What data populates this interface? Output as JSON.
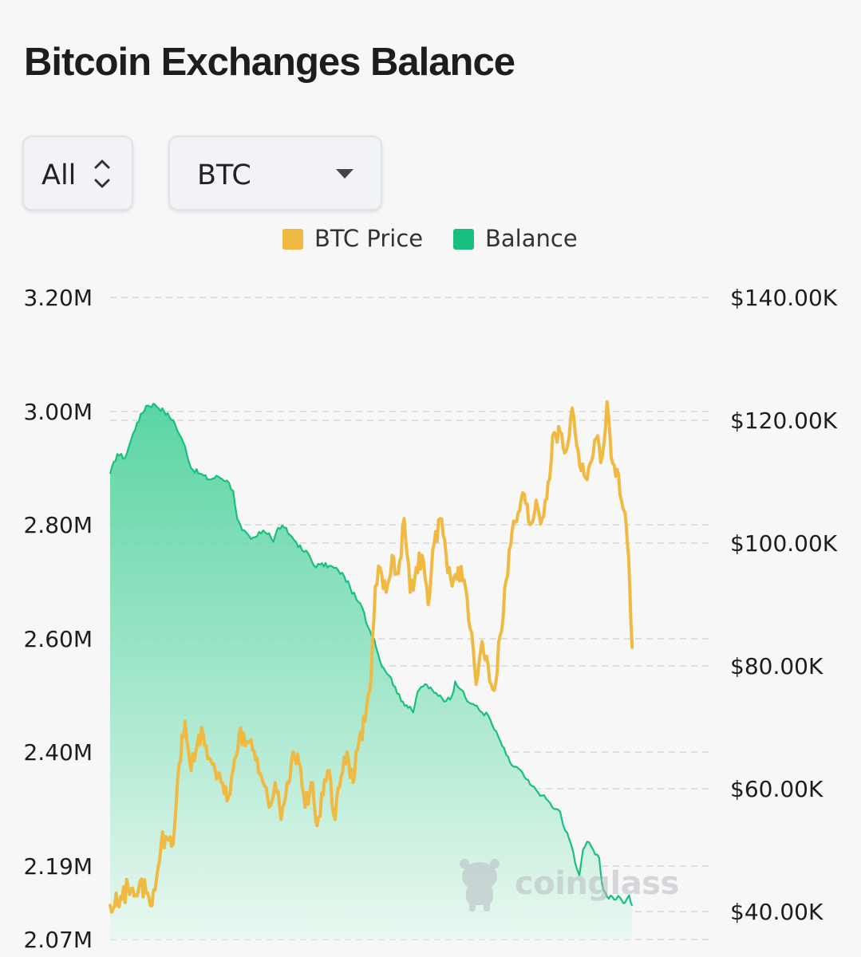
{
  "page": {
    "title": "Bitcoin Exchanges Balance"
  },
  "controls": {
    "range_value": "All",
    "coin_value": "BTC"
  },
  "legend": {
    "price_label": "BTC Price",
    "balance_label": "Balance"
  },
  "watermark": {
    "text": "coinglass"
  },
  "colors": {
    "price": "#f0b941",
    "balance_line": "#19c07d",
    "balance_fill_top": "#3fcf95",
    "balance_fill_bottom": "#e8f8f0",
    "grid": "#dedede"
  },
  "chart_data": {
    "type": "area",
    "title": "Bitcoin Exchanges Balance",
    "x_range": [
      0,
      1
    ],
    "left_axis": {
      "ticks": [
        {
          "label": "3.20M",
          "value": 3200000
        },
        {
          "label": "3.00M",
          "value": 3000000
        },
        {
          "label": "2.80M",
          "value": 2800000
        },
        {
          "label": "2.60M",
          "value": 2600000
        },
        {
          "label": "2.40M",
          "value": 2400000
        },
        {
          "label": "2.19M",
          "value": 2190000
        },
        {
          "label": "2.07M",
          "value": 2070000
        }
      ]
    },
    "right_axis": {
      "ticks": [
        {
          "label": "$140.00K",
          "value": 140000
        },
        {
          "label": "$120.00K",
          "value": 120000
        },
        {
          "label": "$100.00K",
          "value": 100000
        },
        {
          "label": "$80.00K",
          "value": 80000
        },
        {
          "label": "$60.00K",
          "value": 60000
        },
        {
          "label": "$40.00K",
          "value": 40000
        }
      ]
    },
    "grid": true,
    "legend_position": "top-center",
    "series": [
      {
        "name": "Balance",
        "axis": "left",
        "style": "area",
        "points": [
          [
            0.0,
            2890000
          ],
          [
            0.012,
            2925000
          ],
          [
            0.025,
            2918000
          ],
          [
            0.035,
            2950000
          ],
          [
            0.045,
            2980000
          ],
          [
            0.06,
            3010000
          ],
          [
            0.075,
            3012000
          ],
          [
            0.09,
            3000000
          ],
          [
            0.105,
            2985000
          ],
          [
            0.115,
            2960000
          ],
          [
            0.125,
            2938000
          ],
          [
            0.135,
            2900000
          ],
          [
            0.15,
            2890000
          ],
          [
            0.165,
            2880000
          ],
          [
            0.18,
            2885000
          ],
          [
            0.195,
            2878000
          ],
          [
            0.205,
            2860000
          ],
          [
            0.212,
            2810000
          ],
          [
            0.22,
            2790000
          ],
          [
            0.235,
            2775000
          ],
          [
            0.245,
            2780000
          ],
          [
            0.255,
            2790000
          ],
          [
            0.265,
            2785000
          ],
          [
            0.272,
            2770000
          ],
          [
            0.28,
            2795000
          ],
          [
            0.29,
            2795000
          ],
          [
            0.3,
            2782000
          ],
          [
            0.31,
            2770000
          ],
          [
            0.32,
            2755000
          ],
          [
            0.33,
            2750000
          ],
          [
            0.34,
            2728000
          ],
          [
            0.35,
            2730000
          ],
          [
            0.365,
            2728000
          ],
          [
            0.38,
            2720000
          ],
          [
            0.39,
            2710000
          ],
          [
            0.4,
            2690000
          ],
          [
            0.41,
            2670000
          ],
          [
            0.42,
            2655000
          ],
          [
            0.43,
            2620000
          ],
          [
            0.44,
            2600000
          ],
          [
            0.45,
            2560000
          ],
          [
            0.465,
            2535000
          ],
          [
            0.475,
            2515000
          ],
          [
            0.485,
            2490000
          ],
          [
            0.5,
            2480000
          ],
          [
            0.505,
            2470000
          ],
          [
            0.51,
            2495000
          ],
          [
            0.515,
            2510000
          ],
          [
            0.525,
            2520000
          ],
          [
            0.54,
            2505000
          ],
          [
            0.55,
            2500000
          ],
          [
            0.56,
            2490000
          ],
          [
            0.57,
            2500000
          ],
          [
            0.575,
            2525000
          ],
          [
            0.585,
            2510000
          ],
          [
            0.595,
            2490000
          ],
          [
            0.605,
            2485000
          ],
          [
            0.62,
            2470000
          ],
          [
            0.63,
            2465000
          ],
          [
            0.64,
            2440000
          ],
          [
            0.65,
            2420000
          ],
          [
            0.66,
            2395000
          ],
          [
            0.67,
            2375000
          ],
          [
            0.68,
            2370000
          ],
          [
            0.69,
            2355000
          ],
          [
            0.7,
            2340000
          ],
          [
            0.71,
            2330000
          ],
          [
            0.72,
            2320000
          ],
          [
            0.73,
            2310000
          ],
          [
            0.74,
            2295000
          ],
          [
            0.75,
            2290000
          ],
          [
            0.755,
            2265000
          ],
          [
            0.765,
            2240000
          ],
          [
            0.772,
            2215000
          ],
          [
            0.778,
            2185000
          ],
          [
            0.782,
            2175000
          ],
          [
            0.788,
            2220000
          ],
          [
            0.795,
            2235000
          ],
          [
            0.805,
            2220000
          ],
          [
            0.815,
            2205000
          ],
          [
            0.82,
            2160000
          ],
          [
            0.828,
            2140000
          ],
          [
            0.84,
            2135000
          ],
          [
            0.85,
            2138000
          ],
          [
            0.858,
            2130000
          ],
          [
            0.865,
            2142000
          ],
          [
            0.87,
            2125000
          ]
        ]
      },
      {
        "name": "BTC Price",
        "axis": "right",
        "style": "line",
        "points": [
          [
            0.0,
            41000
          ],
          [
            0.01,
            43000
          ],
          [
            0.02,
            42000
          ],
          [
            0.03,
            44000
          ],
          [
            0.04,
            42500
          ],
          [
            0.05,
            45000
          ],
          [
            0.06,
            43000
          ],
          [
            0.067,
            41000
          ],
          [
            0.075,
            43500
          ],
          [
            0.085,
            51000
          ],
          [
            0.095,
            52000
          ],
          [
            0.105,
            51000
          ],
          [
            0.115,
            64000
          ],
          [
            0.125,
            71000
          ],
          [
            0.135,
            63000
          ],
          [
            0.145,
            67000
          ],
          [
            0.155,
            69000
          ],
          [
            0.165,
            65000
          ],
          [
            0.175,
            63000
          ],
          [
            0.185,
            61000
          ],
          [
            0.195,
            58000
          ],
          [
            0.205,
            63000
          ],
          [
            0.215,
            69000
          ],
          [
            0.225,
            67000
          ],
          [
            0.235,
            68000
          ],
          [
            0.245,
            65000
          ],
          [
            0.255,
            61000
          ],
          [
            0.265,
            57000
          ],
          [
            0.275,
            61000
          ],
          [
            0.285,
            55000
          ],
          [
            0.295,
            61000
          ],
          [
            0.305,
            66000
          ],
          [
            0.315,
            64000
          ],
          [
            0.325,
            57000
          ],
          [
            0.335,
            61000
          ],
          [
            0.345,
            54000
          ],
          [
            0.355,
            59000
          ],
          [
            0.365,
            63000
          ],
          [
            0.375,
            55000
          ],
          [
            0.385,
            62000
          ],
          [
            0.395,
            66000
          ],
          [
            0.405,
            61000
          ],
          [
            0.415,
            68000
          ],
          [
            0.425,
            71000
          ],
          [
            0.435,
            78000
          ],
          [
            0.442,
            93000
          ],
          [
            0.45,
            96000
          ],
          [
            0.46,
            92000
          ],
          [
            0.47,
            98000
          ],
          [
            0.48,
            95000
          ],
          [
            0.49,
            104000
          ],
          [
            0.5,
            92000
          ],
          [
            0.51,
            96000
          ],
          [
            0.52,
            98000
          ],
          [
            0.53,
            90000
          ],
          [
            0.54,
            100000
          ],
          [
            0.55,
            104000
          ],
          [
            0.56,
            98000
          ],
          [
            0.57,
            93000
          ],
          [
            0.58,
            96000
          ],
          [
            0.59,
            94000
          ],
          [
            0.6,
            86000
          ],
          [
            0.61,
            77000
          ],
          [
            0.62,
            84000
          ],
          [
            0.63,
            80000
          ],
          [
            0.64,
            76000
          ],
          [
            0.65,
            85000
          ],
          [
            0.66,
            94000
          ],
          [
            0.67,
            102000
          ],
          [
            0.68,
            105000
          ],
          [
            0.69,
            108000
          ],
          [
            0.7,
            103000
          ],
          [
            0.71,
            107000
          ],
          [
            0.72,
            104000
          ],
          [
            0.73,
            110000
          ],
          [
            0.74,
            118000
          ],
          [
            0.75,
            118000
          ],
          [
            0.76,
            115000
          ],
          [
            0.77,
            122000
          ],
          [
            0.78,
            115000
          ],
          [
            0.79,
            111000
          ],
          [
            0.8,
            113000
          ],
          [
            0.81,
            117000
          ],
          [
            0.82,
            114000
          ],
          [
            0.828,
            123000
          ],
          [
            0.835,
            114000
          ],
          [
            0.845,
            112000
          ],
          [
            0.852,
            107000
          ],
          [
            0.858,
            105000
          ],
          [
            0.862,
            100000
          ],
          [
            0.866,
            93000
          ],
          [
            0.87,
            83000
          ]
        ]
      }
    ]
  }
}
